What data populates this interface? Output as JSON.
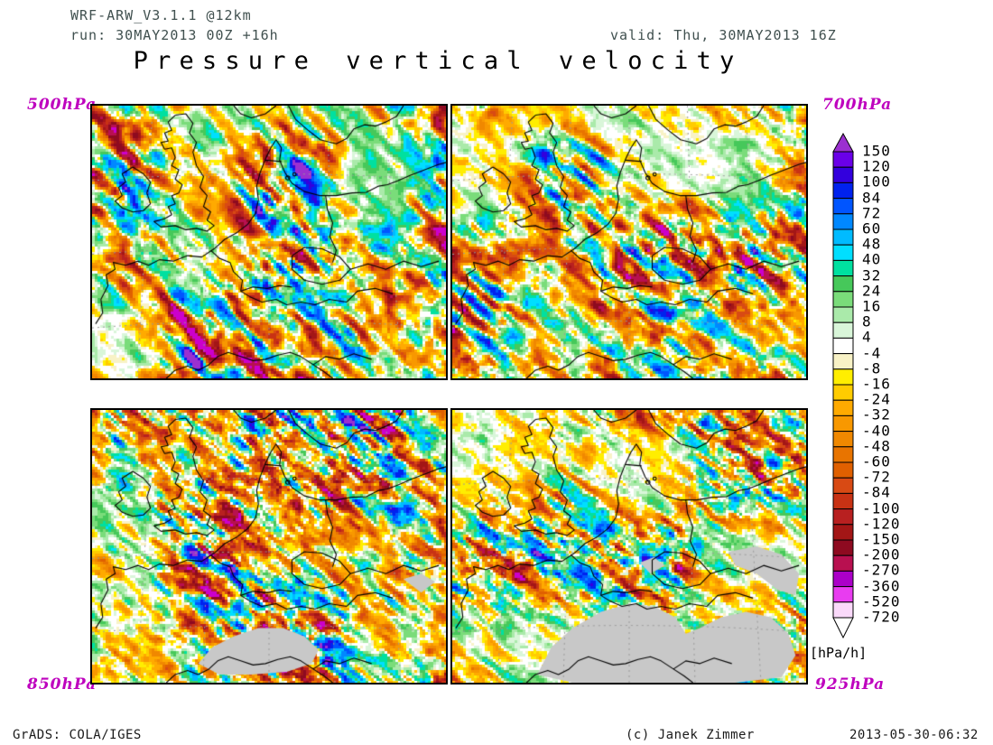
{
  "header": {
    "model": "WRF-ARW_V3.1.1 @12km",
    "run": "run: 30MAY2013 00Z +16h",
    "valid": "valid: Thu, 30MAY2013 16Z"
  },
  "title": "Pressure vertical velocity",
  "panels": [
    {
      "label": "500hPa",
      "position": "top-left"
    },
    {
      "label": "700hPa",
      "position": "top-right"
    },
    {
      "label": "850hPa",
      "position": "bottom-left"
    },
    {
      "label": "925hPa",
      "position": "bottom-right"
    }
  ],
  "colorbar": {
    "unit_label": "[hPa/h]",
    "ticks": [
      150,
      120,
      100,
      84,
      72,
      60,
      48,
      40,
      32,
      24,
      16,
      8,
      4,
      -4,
      -8,
      -16,
      -24,
      -32,
      -40,
      -48,
      -60,
      -72,
      -84,
      -100,
      -120,
      -150,
      -200,
      -270,
      -360,
      -520,
      -720
    ],
    "top_arrow_color": "#9b30d0",
    "bottom_arrow_color": "#ffffff",
    "box_colors": [
      "#6a00e8",
      "#3300dd",
      "#0022ee",
      "#0055ff",
      "#0088ff",
      "#00bbff",
      "#00dfff",
      "#00e0a0",
      "#46c85a",
      "#7adc7a",
      "#aaeaaa",
      "#d9f6d9",
      "#ffffff",
      "#f8f2c6",
      "#ffee00",
      "#ffcc00",
      "#ffaa00",
      "#f89800",
      "#f08800",
      "#e87400",
      "#e06000",
      "#d84a14",
      "#c83214",
      "#b82020",
      "#a31616",
      "#8e0a20",
      "#b81050",
      "#ab00c8",
      "#e83cf0",
      "#fad9fa"
    ]
  },
  "footer": {
    "left": "GrADS: COLA/IGES",
    "center": "(c) Janek Zimmer",
    "right": "2013-05-30-06:32"
  },
  "colors": {
    "header_text": "#40504f",
    "panel_label": "#be00be",
    "terrain_mask": "#c8c8c8",
    "coastline": "#000000",
    "graticule": "#9a9a9a"
  },
  "chart_data": {
    "type": "heatmap",
    "title": "Pressure vertical velocity",
    "unit": "hPa/h",
    "model_run": "WRF-ARW_V3.1.1 @12km, run 30MAY2013 00Z +16h, valid Thu 30MAY2013 16Z",
    "panels": [
      "500hPa",
      "700hPa",
      "850hPa",
      "925hPa"
    ],
    "region_hint": "central Europe map with coastlines and country borders; gray = below-ground terrain mask on 850/925 hPa panels",
    "colorbar_ticks": [
      150,
      120,
      100,
      84,
      72,
      60,
      48,
      40,
      32,
      24,
      16,
      8,
      4,
      -4,
      -8,
      -16,
      -24,
      -32,
      -40,
      -48,
      -60,
      -72,
      -84,
      -100,
      -120,
      -150,
      -200,
      -270,
      -360,
      -520,
      -720
    ],
    "colorbar_range": [
      -720,
      150
    ],
    "palette_note": "positive (upward colorbar): white-green-cyan-blue-violet; negative: cream-yellow-orange-red-magenta-pink",
    "legend_position": "right"
  }
}
